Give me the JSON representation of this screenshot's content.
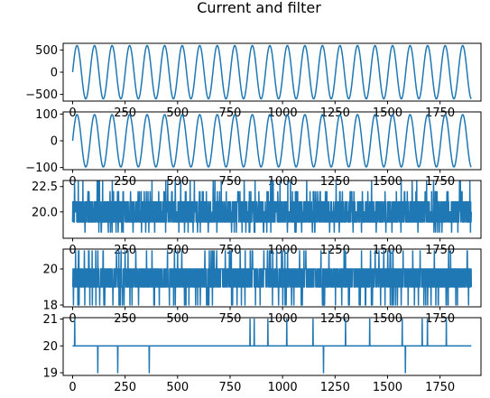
{
  "figure": {
    "title": "Current and filter",
    "line_color": "#1f77b4"
  },
  "chart_data": [
    {
      "type": "line",
      "xlim": [
        -45,
        1945
      ],
      "ylim": [
        -650,
        650
      ],
      "xticks": [
        0,
        250,
        500,
        750,
        1000,
        1250,
        1500,
        1750
      ],
      "yticks": [
        500,
        0,
        -500
      ],
      "ytick_labels": [
        "500",
        "0",
        "−500"
      ],
      "signal": {
        "kind": "sine",
        "amplitude": 600,
        "period": 83.5,
        "phase": 0,
        "n": 1900
      }
    },
    {
      "type": "line",
      "xlim": [
        -45,
        1945
      ],
      "ylim": [
        -108,
        108
      ],
      "xticks": [
        0,
        250,
        500,
        750,
        1000,
        1250,
        1500,
        1750
      ],
      "yticks": [
        100,
        0,
        -100
      ],
      "ytick_labels": [
        "100",
        "0",
        "−100"
      ],
      "signal": {
        "kind": "sine",
        "amplitude": 98,
        "period": 83.5,
        "phase": 0,
        "n": 1900
      }
    },
    {
      "type": "line",
      "xlim": [
        -45,
        1945
      ],
      "ylim": [
        17.4,
        23.1
      ],
      "xticks": [
        0,
        250,
        500,
        750,
        1000,
        1250,
        1500,
        1750
      ],
      "yticks": [
        22.5,
        20.0
      ],
      "ytick_labels": [
        "22.5",
        "20.0"
      ],
      "signal": {
        "kind": "levels",
        "levels": [
          18,
          19,
          20,
          21,
          22,
          23
        ],
        "weights": [
          0.03,
          0.38,
          0.22,
          0.3,
          0.05,
          0.02
        ],
        "seed": 7,
        "n": 1900
      }
    },
    {
      "type": "line",
      "xlim": [
        -45,
        1945
      ],
      "ylim": [
        17.9,
        21.1
      ],
      "xticks": [
        0,
        250,
        500,
        750,
        1000,
        1250,
        1500,
        1750
      ],
      "yticks": [
        20,
        18
      ],
      "ytick_labels": [
        "20",
        "18"
      ],
      "signal": {
        "kind": "levels",
        "levels": [
          18,
          19,
          20,
          21
        ],
        "weights": [
          0.05,
          0.45,
          0.46,
          0.04
        ],
        "seed": 13,
        "n": 1900
      }
    },
    {
      "type": "line",
      "xlim": [
        -45,
        1945
      ],
      "ylim": [
        18.9,
        21.05
      ],
      "xticks": [
        0,
        250,
        500,
        750,
        1000,
        1250,
        1500,
        1750
      ],
      "yticks": [
        21,
        20,
        19
      ],
      "ytick_labels": [
        "21",
        "20",
        "19"
      ],
      "signal": {
        "kind": "baseline",
        "base": 20,
        "n": 1900,
        "spikes": [
          {
            "x": 10,
            "to": 21
          },
          {
            "x": 120,
            "to": 19
          },
          {
            "x": 215,
            "to": 19
          },
          {
            "x": 365,
            "to": 19
          },
          {
            "x": 845,
            "to": 21
          },
          {
            "x": 865,
            "to": 21
          },
          {
            "x": 930,
            "to": 21
          },
          {
            "x": 1020,
            "to": 21
          },
          {
            "x": 1145,
            "to": 21
          },
          {
            "x": 1195,
            "to": 19
          },
          {
            "x": 1300,
            "to": 21
          },
          {
            "x": 1415,
            "to": 21
          },
          {
            "x": 1570,
            "to": 21
          },
          {
            "x": 1585,
            "to": 19
          },
          {
            "x": 1665,
            "to": 21
          },
          {
            "x": 1690,
            "to": 21
          },
          {
            "x": 1780,
            "to": 21
          }
        ]
      }
    }
  ]
}
